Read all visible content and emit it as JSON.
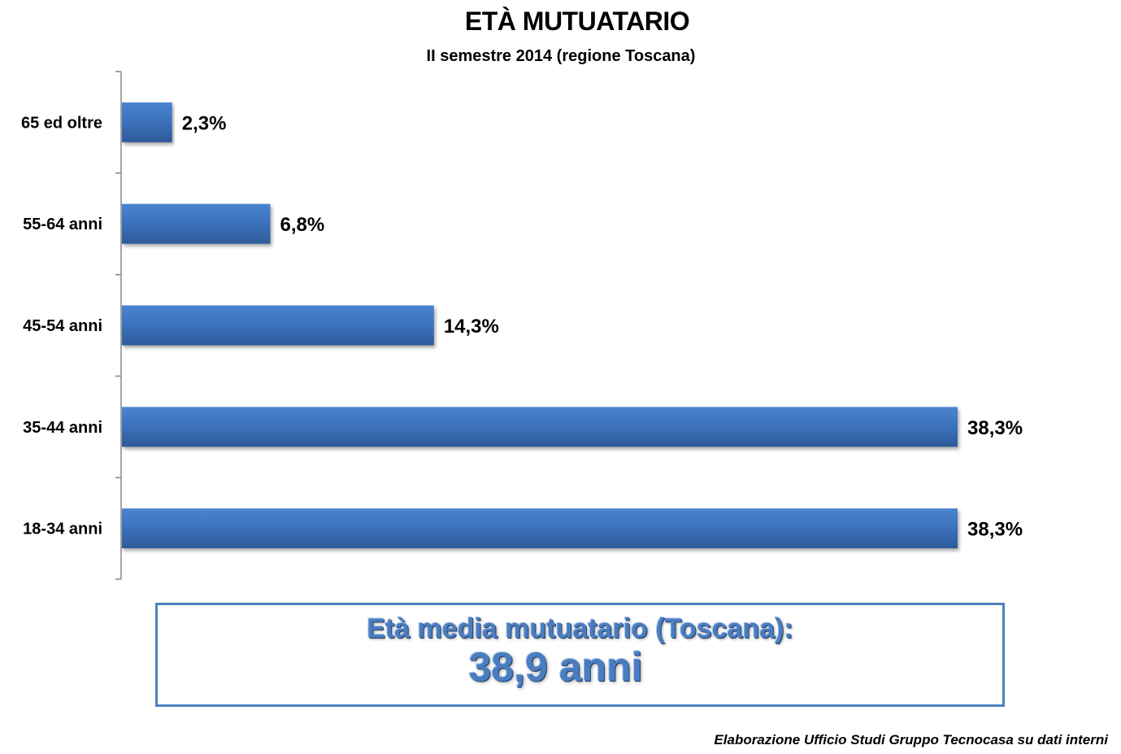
{
  "chart_data": {
    "type": "bar",
    "orientation": "horizontal",
    "title": "ETÀ MUTUATARIO",
    "subtitle": "II semestre 2014 (regione Toscana)",
    "categories": [
      "65 ed oltre",
      "55-64 anni",
      "45-54 anni",
      "35-44 anni",
      "18-34 anni"
    ],
    "values": [
      2.3,
      6.8,
      14.3,
      38.3,
      38.3
    ],
    "value_labels": [
      "2,3%",
      "6,8%",
      "14,3%",
      "38,3%",
      "38,3%"
    ],
    "unit": "%",
    "xlim": [
      0,
      40
    ],
    "grid": false,
    "legend": "none",
    "bar_color": "#3b6fb8"
  },
  "average_box": {
    "label": "Età media mutuatario (Toscana):",
    "value": "38,9 anni"
  },
  "source_note": "Elaborazione Ufficio Studi Gruppo Tecnocasa su dati interni"
}
